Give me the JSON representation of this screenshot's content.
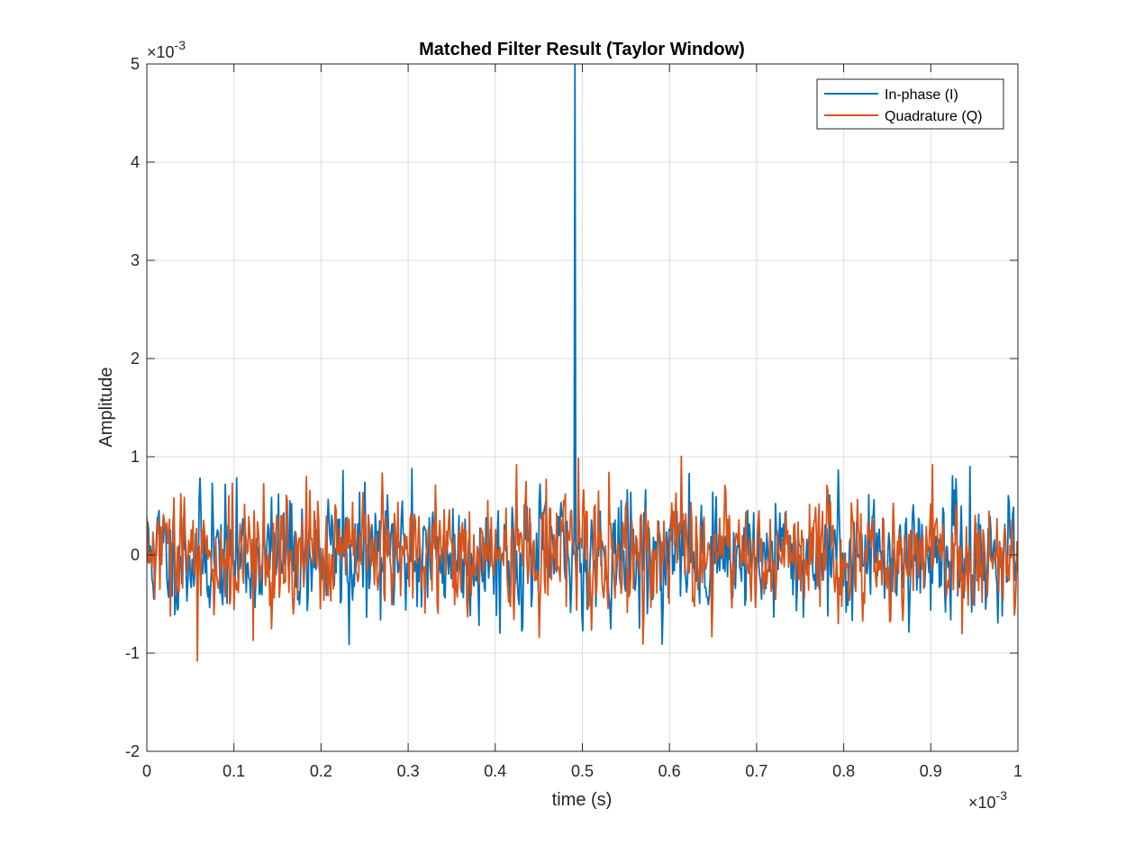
{
  "chart_data": {
    "type": "line",
    "title": "Matched Filter Result (Taylor Window)",
    "xlabel": "time (s)",
    "ylabel": "Amplitude",
    "x_multiplier_label": "×10",
    "x_multiplier_exp": "-3",
    "y_multiplier_label": "×10",
    "y_multiplier_exp": "-3",
    "xlim": [
      0,
      1
    ],
    "ylim": [
      -2,
      5
    ],
    "x_ticks": [
      0,
      0.1,
      0.2,
      0.3,
      0.4,
      0.5,
      0.6,
      0.7,
      0.8,
      0.9,
      1
    ],
    "x_tick_labels": [
      "0",
      "0.1",
      "0.2",
      "0.3",
      "0.4",
      "0.5",
      "0.6",
      "0.7",
      "0.8",
      "0.9",
      "1"
    ],
    "y_ticks": [
      -2,
      -1,
      0,
      1,
      2,
      3,
      4,
      5
    ],
    "y_tick_labels": [
      "-2",
      "-1",
      "0",
      "1",
      "2",
      "3",
      "4",
      "5"
    ],
    "grid": true,
    "legend_position": "top-right",
    "num_samples": 1000,
    "series": [
      {
        "name": "In-phase (I)",
        "color": "#0072BD",
        "noise_sigma": 0.28,
        "seed": 11,
        "peak": {
          "x": 0.491,
          "y": 5.0
        },
        "noteworthy_points": [
          {
            "x": 0.075,
            "y": 0.73
          },
          {
            "x": 0.225,
            "y": 0.86
          },
          {
            "x": 0.232,
            "y": -0.91
          },
          {
            "x": 0.304,
            "y": 0.88
          },
          {
            "x": 0.945,
            "y": 0.9
          }
        ]
      },
      {
        "name": "Quadrature (Q)",
        "color": "#D95319",
        "noise_sigma": 0.28,
        "seed": 29,
        "noteworthy_points": [
          {
            "x": 0.058,
            "y": -1.08
          },
          {
            "x": 0.122,
            "y": -0.87
          },
          {
            "x": 0.458,
            "y": 0.77
          },
          {
            "x": 0.531,
            "y": 0.84
          },
          {
            "x": 0.902,
            "y": 0.92
          },
          {
            "x": 0.936,
            "y": -0.8
          }
        ]
      }
    ]
  }
}
